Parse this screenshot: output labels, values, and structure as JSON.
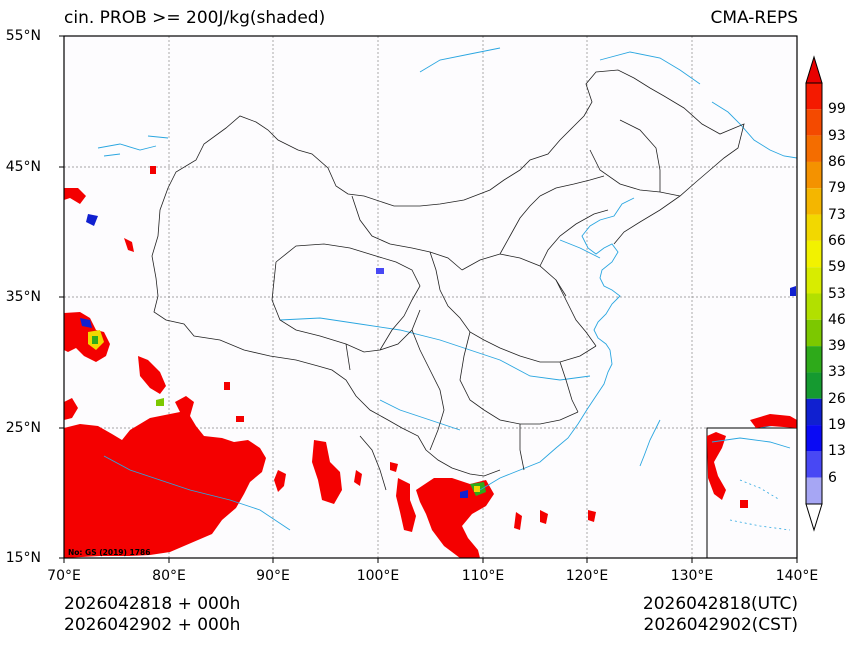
{
  "title_left": "cin. PROB >= 200J/kg(shaded)",
  "title_right": "CMA-REPS",
  "lat_ticks": [
    "55°N",
    "45°N",
    "35°N",
    "25°N",
    "15°N"
  ],
  "lon_ticks": [
    "70°E",
    "80°E",
    "90°E",
    "100°E",
    "110°E",
    "120°E",
    "130°E",
    "140°E"
  ],
  "footer_left": [
    "2026042818  +  000h",
    "2026042902  +  000h"
  ],
  "footer_right": [
    "2026042818(UTC)",
    "2026042902(CST)"
  ],
  "map_note": "No: GS (2019) 1786",
  "colorbar": {
    "labels": [
      "99",
      "93",
      "86",
      "79",
      "73",
      "66",
      "59",
      "53",
      "46",
      "39",
      "33",
      "26",
      "19",
      "13",
      "6"
    ],
    "colors": [
      "#f41a00",
      "#f44a00",
      "#f46d00",
      "#f49200",
      "#f4b600",
      "#f2d800",
      "#f2f200",
      "#d8ec00",
      "#b2e000",
      "#7cc800",
      "#2eaa1a",
      "#159a30",
      "#1020d0",
      "#0a0af4",
      "#4848f4",
      "#a6a6f4"
    ],
    "top_arrow_color": "#e80000",
    "bottom_arrow_color": "#ffffff"
  },
  "colors": {
    "shading_main": "#f40000",
    "coast": "#2aa6e0",
    "borders": "#222222",
    "grid": "#888888"
  }
}
